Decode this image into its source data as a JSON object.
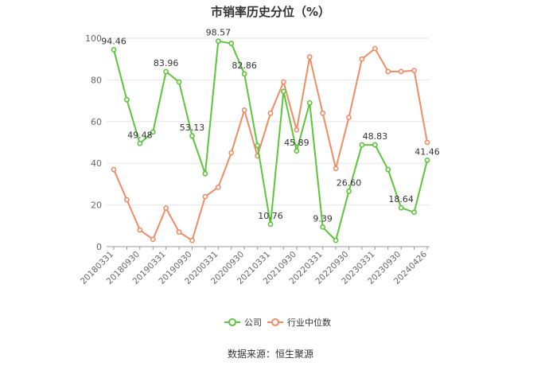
{
  "source_note": "数据来源：恒生聚源",
  "colors": {
    "company": "#5cc53a",
    "industry": "#f08c64",
    "grid": "#e6e6e6",
    "axis": "#999999",
    "text": "#333333"
  },
  "chart_data": {
    "type": "line",
    "title": "市销率历史分位（%）",
    "xlabel": "",
    "ylabel": "",
    "ylim": [
      0,
      100
    ],
    "yticks": [
      0,
      20,
      40,
      60,
      80,
      100
    ],
    "grid": true,
    "legend_position": "bottom-center",
    "x_tick_labels": [
      "20180331",
      "20180930",
      "20190331",
      "20190930",
      "20200331",
      "20200930",
      "20210331",
      "20210930",
      "20220331",
      "20220930",
      "20230331",
      "20230930",
      "20240426"
    ],
    "x": [
      "20180331",
      "20180630",
      "20180930",
      "20181231",
      "20190331",
      "20190630",
      "20190930",
      "20191231",
      "20200331",
      "20200630",
      "20200930",
      "20201231",
      "20210331",
      "20210630",
      "20210930",
      "20211231",
      "20220331",
      "20220630",
      "20220930",
      "20221231",
      "20230331",
      "20230630",
      "20230930",
      "20231231",
      "20240426"
    ],
    "series": [
      {
        "name": "公司",
        "values": [
          94.46,
          70.5,
          49.48,
          55.0,
          83.96,
          79.0,
          53.13,
          35.0,
          98.57,
          97.5,
          82.86,
          48.5,
          10.76,
          74.5,
          45.89,
          69.0,
          9.39,
          3.0,
          26.6,
          48.83,
          48.83,
          37.0,
          18.64,
          16.5,
          41.46
        ],
        "labels": {
          "0": "94.46",
          "2": "49.48",
          "4": "83.96",
          "6": "53.13",
          "8": "98.57",
          "10": "82.86",
          "12": "10.76",
          "14": "45.89",
          "16": "9.39",
          "18": "26.60",
          "20": "48.83",
          "22": "18.64",
          "24": "41.46"
        }
      },
      {
        "name": "行业中位数",
        "values": [
          37.0,
          22.5,
          8.0,
          3.5,
          18.5,
          7.0,
          3.0,
          24.0,
          28.5,
          45.0,
          65.5,
          43.5,
          64.0,
          79.0,
          56.0,
          91.0,
          64.0,
          37.5,
          62.0,
          90.0,
          95.0,
          84.0,
          84.0,
          84.5,
          50.0
        ]
      }
    ]
  }
}
